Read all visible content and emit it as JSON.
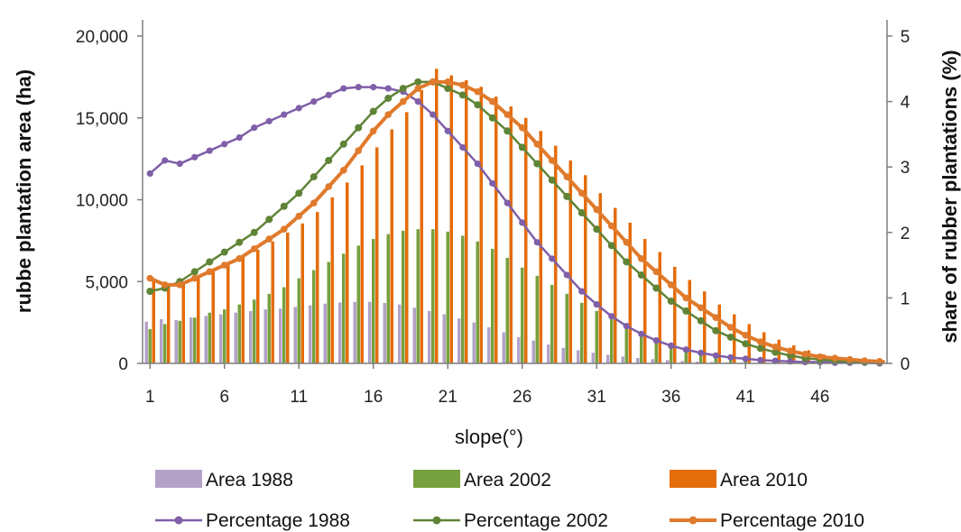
{
  "chart_data": {
    "type": "bar+line",
    "xlabel": "slope(°)",
    "ylabel_left": "rubbe plantation area (ha)",
    "ylabel_right": "share of rubber plantations (%)",
    "ylim_left": [
      0,
      20000
    ],
    "ylim_right": [
      0,
      5
    ],
    "x": [
      1,
      2,
      3,
      4,
      5,
      6,
      7,
      8,
      9,
      10,
      11,
      12,
      13,
      14,
      15,
      16,
      17,
      18,
      19,
      20,
      21,
      22,
      23,
      24,
      25,
      26,
      27,
      28,
      29,
      30,
      31,
      32,
      33,
      34,
      35,
      36,
      37,
      38,
      39,
      40,
      41,
      42,
      43,
      44,
      45,
      46,
      47,
      48,
      49,
      50
    ],
    "x_ticks": [
      "1",
      "6",
      "11",
      "16",
      "21",
      "26",
      "31",
      "36",
      "41",
      "46"
    ],
    "y_ticks_left": [
      "0",
      "5,000",
      "10,000",
      "15,000",
      "20,000"
    ],
    "y_ticks_right": [
      "0",
      "1",
      "2",
      "3",
      "4",
      "5"
    ],
    "grid": false,
    "legend_position": "bottom",
    "bar_series": [
      {
        "name": "Area 1988",
        "color": "#b3a2c7",
        "values": [
          2550,
          2700,
          2650,
          2800,
          2900,
          3000,
          3100,
          3200,
          3300,
          3350,
          3450,
          3550,
          3650,
          3720,
          3760,
          3760,
          3700,
          3600,
          3400,
          3200,
          3000,
          2750,
          2500,
          2200,
          1900,
          1600,
          1400,
          1150,
          950,
          800,
          650,
          520,
          420,
          330,
          260,
          200,
          150,
          110,
          80,
          60,
          40,
          30,
          20,
          15,
          10,
          8,
          6,
          4,
          3,
          2
        ]
      },
      {
        "name": "Area 2002",
        "color": "#77a03e",
        "values": [
          2100,
          2400,
          2600,
          2800,
          3100,
          3300,
          3600,
          3900,
          4250,
          4650,
          5200,
          5700,
          6200,
          6700,
          7200,
          7600,
          7900,
          8100,
          8200,
          8200,
          8050,
          7800,
          7450,
          7000,
          6450,
          5850,
          5350,
          4800,
          4250,
          3700,
          3200,
          2700,
          2250,
          1800,
          1450,
          1150,
          900,
          700,
          540,
          400,
          300,
          220,
          160,
          120,
          85,
          60,
          45,
          30,
          20,
          15
        ]
      },
      {
        "name": "Area 2010",
        "color": "#e46c0a",
        "values": [
          5200,
          4900,
          5000,
          5350,
          5700,
          6050,
          6500,
          6950,
          7450,
          8000,
          8550,
          9250,
          10150,
          11050,
          12100,
          13200,
          14300,
          15350,
          16700,
          18000,
          17600,
          17300,
          16900,
          16300,
          15700,
          15000,
          14200,
          13300,
          12400,
          11500,
          10400,
          9500,
          8600,
          7600,
          6800,
          5900,
          5100,
          4400,
          3600,
          3000,
          2400,
          1900,
          1450,
          1100,
          800,
          550,
          400,
          300,
          250,
          200
        ]
      }
    ],
    "line_series": [
      {
        "name": "Percentage 1988",
        "color": "#7f5fa8",
        "values": [
          2.9,
          3.1,
          3.05,
          3.15,
          3.25,
          3.35,
          3.45,
          3.6,
          3.7,
          3.8,
          3.9,
          4.0,
          4.1,
          4.2,
          4.22,
          4.22,
          4.2,
          4.15,
          4.0,
          3.8,
          3.55,
          3.3,
          3.05,
          2.75,
          2.45,
          2.15,
          1.85,
          1.6,
          1.35,
          1.1,
          0.9,
          0.72,
          0.57,
          0.45,
          0.35,
          0.27,
          0.21,
          0.16,
          0.12,
          0.09,
          0.07,
          0.05,
          0.04,
          0.03,
          0.02,
          0.02,
          0.01,
          0.01,
          0.01,
          0.0
        ]
      },
      {
        "name": "Percentage 2002",
        "color": "#5f8436",
        "values": [
          1.1,
          1.15,
          1.25,
          1.4,
          1.55,
          1.7,
          1.85,
          2.0,
          2.2,
          2.4,
          2.6,
          2.85,
          3.1,
          3.35,
          3.6,
          3.85,
          4.05,
          4.2,
          4.3,
          4.3,
          4.2,
          4.1,
          3.95,
          3.75,
          3.55,
          3.3,
          3.05,
          2.8,
          2.55,
          2.3,
          2.05,
          1.8,
          1.55,
          1.35,
          1.15,
          0.95,
          0.8,
          0.65,
          0.5,
          0.4,
          0.3,
          0.23,
          0.17,
          0.12,
          0.08,
          0.06,
          0.04,
          0.03,
          0.02,
          0.02
        ]
      },
      {
        "name": "Percentage 2010",
        "color": "#e07a2c",
        "values": [
          1.3,
          1.2,
          1.2,
          1.3,
          1.4,
          1.5,
          1.6,
          1.75,
          1.9,
          2.05,
          2.25,
          2.45,
          2.7,
          2.95,
          3.25,
          3.55,
          3.8,
          4.0,
          4.2,
          4.3,
          4.3,
          4.25,
          4.15,
          4.0,
          3.8,
          3.6,
          3.35,
          3.1,
          2.85,
          2.6,
          2.35,
          2.1,
          1.85,
          1.6,
          1.4,
          1.2,
          1.0,
          0.85,
          0.7,
          0.55,
          0.43,
          0.33,
          0.25,
          0.19,
          0.14,
          0.1,
          0.08,
          0.06,
          0.04,
          0.03
        ]
      }
    ]
  }
}
